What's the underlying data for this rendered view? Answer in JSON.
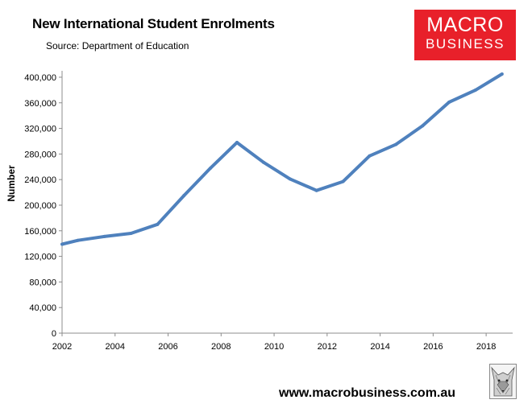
{
  "chart_data": {
    "type": "line",
    "title": "New International Student Enrolments",
    "subtitle": "Source: Department of Education",
    "xlabel": "",
    "ylabel": "Number",
    "xlim": [
      2002,
      2019
    ],
    "ylim": [
      0,
      410000
    ],
    "x_ticks": [
      2002,
      2004,
      2006,
      2008,
      2010,
      2012,
      2014,
      2016,
      2018
    ],
    "x_tick_labels": [
      "2002",
      "2004",
      "2006",
      "2008",
      "2010",
      "2012",
      "2014",
      "2016",
      "2018"
    ],
    "y_ticks": [
      0,
      40000,
      80000,
      120000,
      160000,
      200000,
      240000,
      280000,
      320000,
      360000,
      400000
    ],
    "y_tick_labels": [
      "0",
      "40,000",
      "80,000",
      "120,000",
      "160,000",
      "200,000",
      "240,000",
      "280,000",
      "320,000",
      "360,000",
      "400,000"
    ],
    "grid": false,
    "legend": false,
    "series": [
      {
        "name": "New International Student Enrolments",
        "color": "#4f81bd",
        "x": [
          2002,
          2002.6,
          2003.6,
          2004.6,
          2005.6,
          2006.6,
          2007.6,
          2008.6,
          2009.6,
          2010.6,
          2011.6,
          2012.6,
          2013.6,
          2014.6,
          2015.6,
          2016.6,
          2017.6,
          2018.6
        ],
        "values": [
          139000,
          145000,
          151000,
          156000,
          170000,
          215000,
          258000,
          298000,
          267000,
          241000,
          223000,
          237000,
          277000,
          295000,
          324000,
          361000,
          380000,
          405000
        ]
      }
    ]
  },
  "logo": {
    "line1": "MACRO",
    "line2": "BUSINESS"
  },
  "footer": {
    "website": "www.macrobusiness.com.au"
  },
  "colors": {
    "logo_bg": "#e8202a",
    "line": "#4f81bd"
  }
}
